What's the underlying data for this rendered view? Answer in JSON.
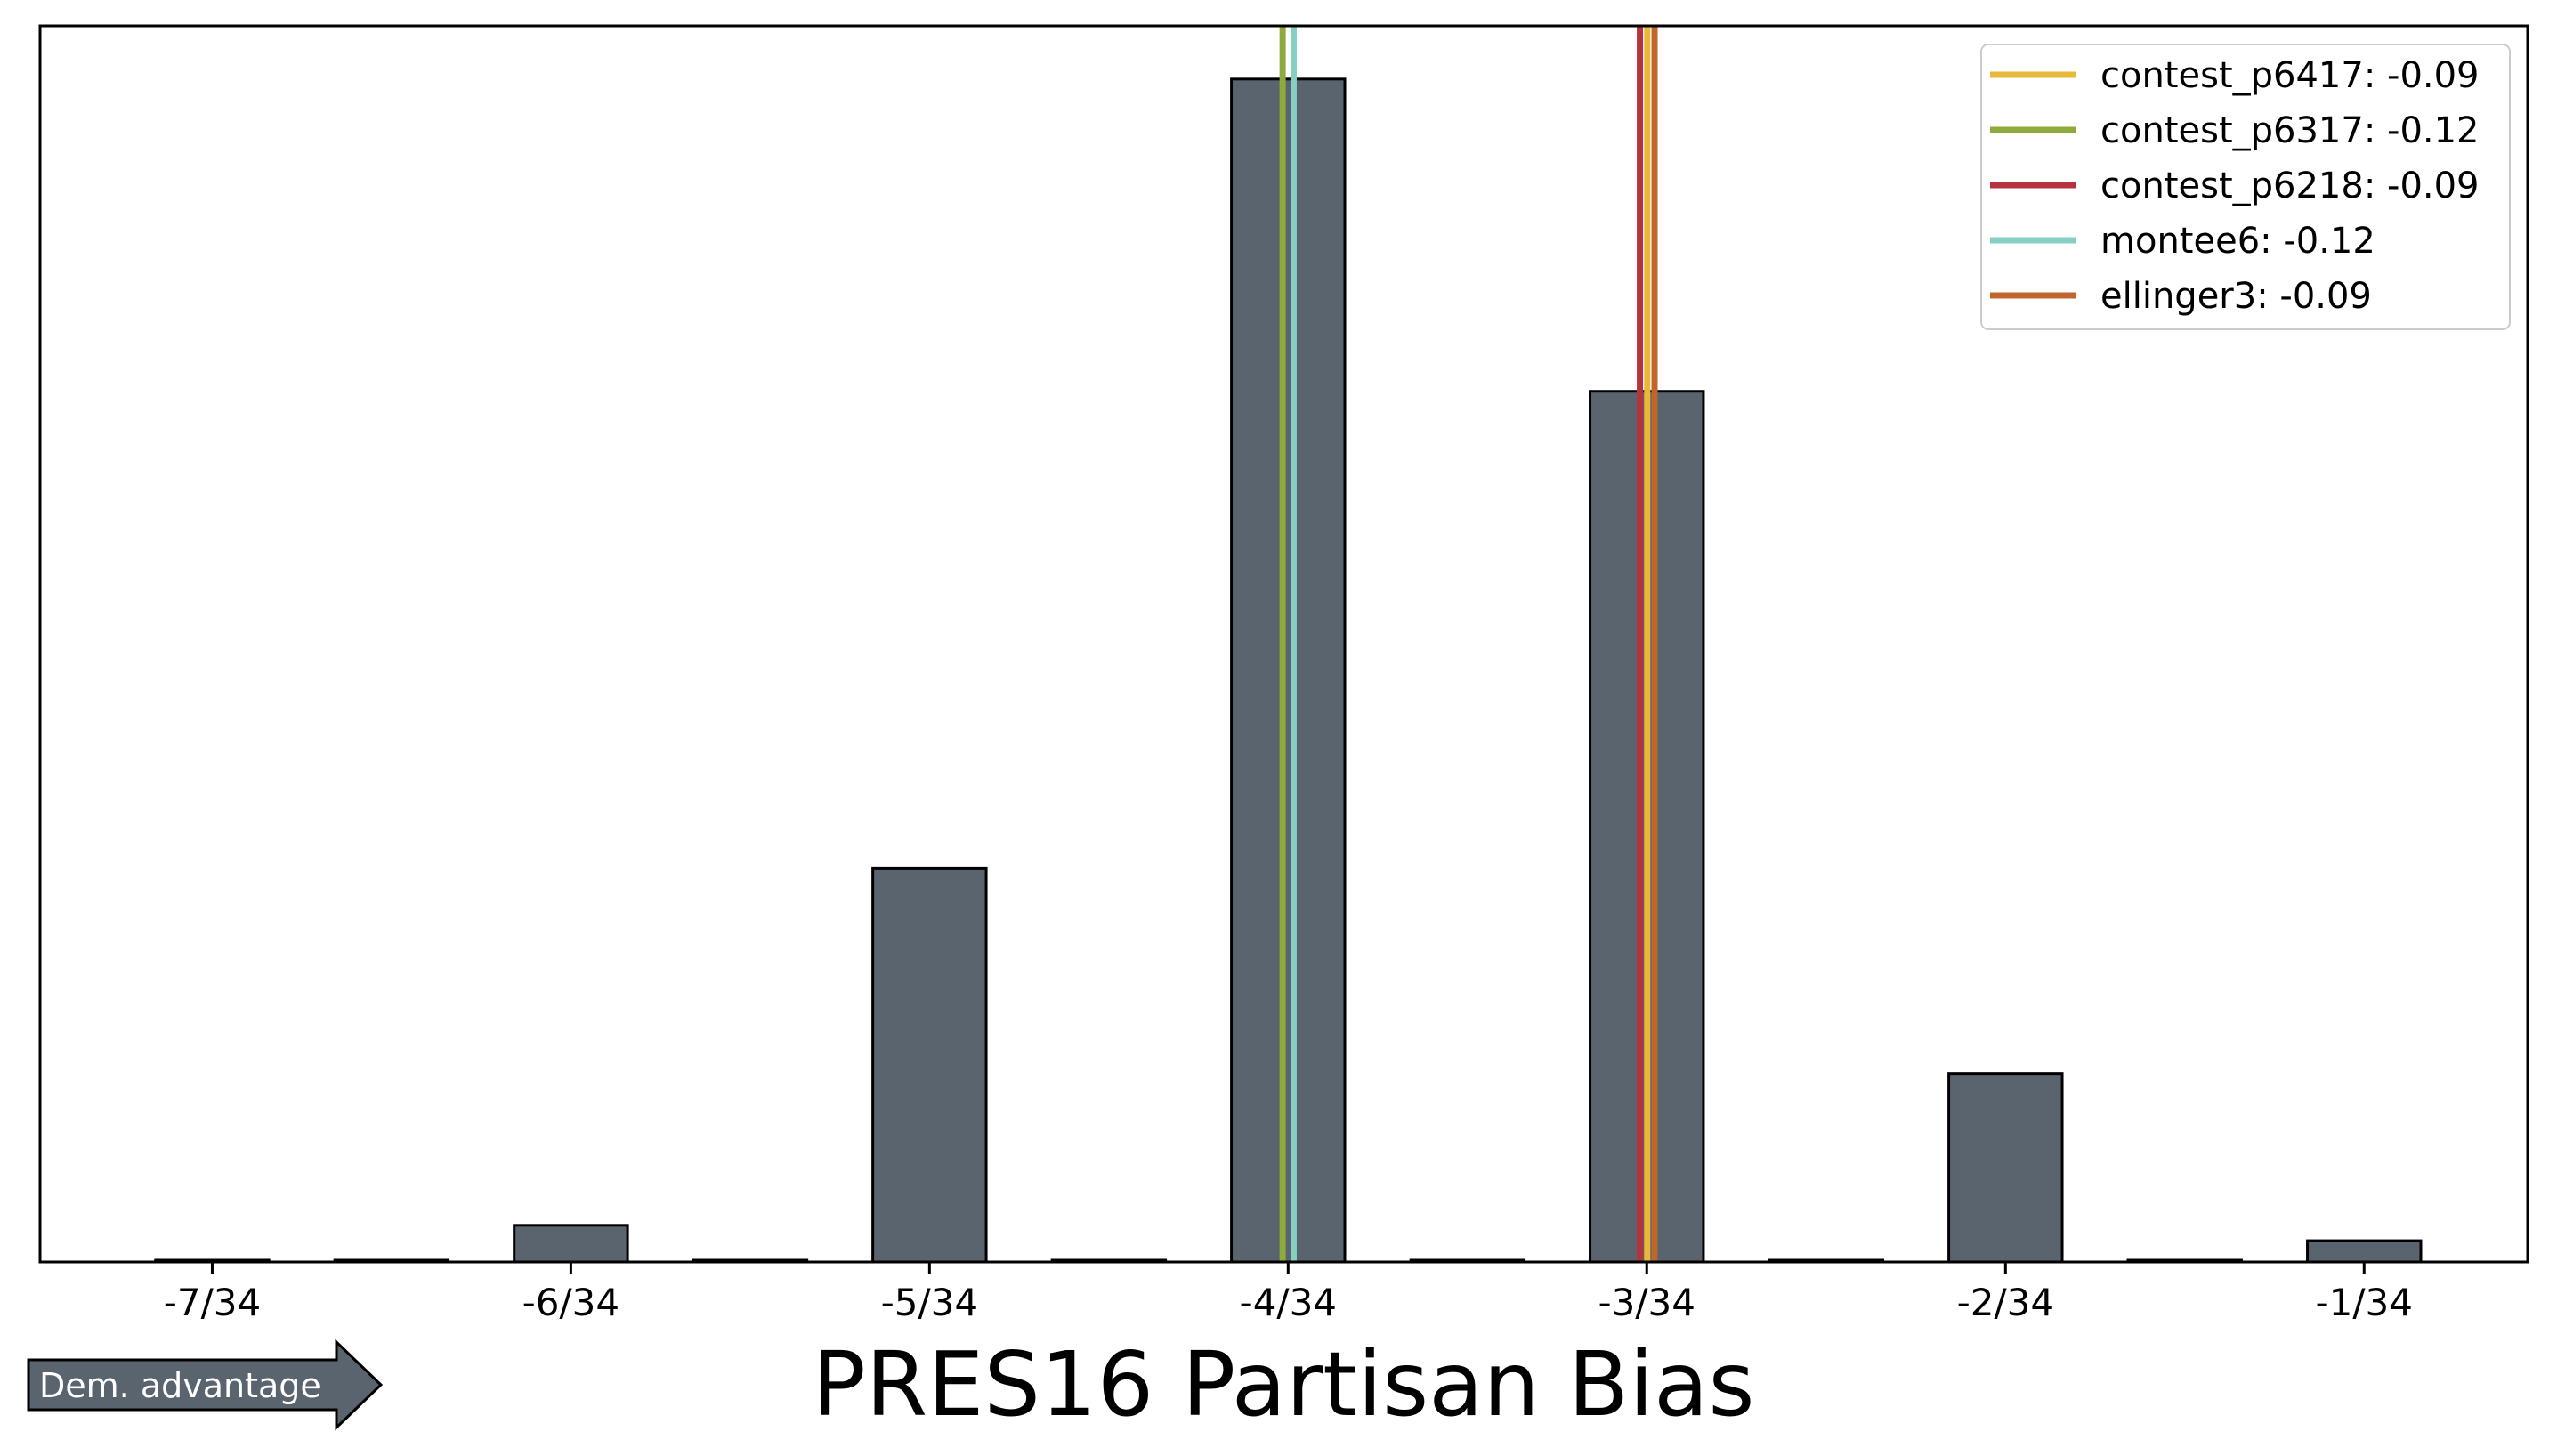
{
  "chart_data": {
    "type": "bar",
    "title": "",
    "xlabel": "PRES16 Partisan Bias",
    "ylabel": "",
    "x_tick_values": [
      -0.20588,
      -0.17647,
      -0.14706,
      -0.11765,
      -0.08824,
      -0.05882,
      -0.02941
    ],
    "x_tick_labels": [
      "-7/34",
      "-6/34",
      "-5/34",
      "-4/34",
      "-3/34",
      "-2/34",
      "-1/34"
    ],
    "xlim": [
      -0.22,
      -0.016
    ],
    "ylim": [
      0,
      1.045
    ],
    "bars": [
      {
        "x": -0.20588,
        "value": 0.0015
      },
      {
        "x": -0.19118,
        "value": 0.0015
      },
      {
        "x": -0.17647,
        "value": 0.031
      },
      {
        "x": -0.16176,
        "value": 0.0015
      },
      {
        "x": -0.14706,
        "value": 0.333
      },
      {
        "x": -0.13235,
        "value": 0.0015
      },
      {
        "x": -0.11765,
        "value": 1.0
      },
      {
        "x": -0.10294,
        "value": 0.0015
      },
      {
        "x": -0.08824,
        "value": 0.736
      },
      {
        "x": -0.07353,
        "value": 0.0015
      },
      {
        "x": -0.05882,
        "value": 0.159
      },
      {
        "x": -0.04412,
        "value": 0.0015
      },
      {
        "x": -0.02941,
        "value": 0.018
      }
    ],
    "bar_width": 0.0093,
    "bar_color": "#5a646e",
    "grid": false,
    "legend_position": "top-right",
    "vlines": [
      {
        "name": "contest_p6417",
        "label": "contest_p6417: -0.09",
        "x": -0.0882,
        "color": "#e8b83a"
      },
      {
        "name": "contest_p6317",
        "label": "contest_p6317: -0.12",
        "x": -0.1181,
        "color": "#8faa3c"
      },
      {
        "name": "contest_p6218",
        "label": "contest_p6218: -0.09",
        "x": -0.0888,
        "color": "#b7323f"
      },
      {
        "name": "montee6",
        "label": "montee6: -0.12",
        "x": -0.1172,
        "color": "#86cfc4"
      },
      {
        "name": "ellinger3",
        "label": "ellinger3: -0.09",
        "x": -0.0876,
        "color": "#c0662c"
      }
    ],
    "annotation": {
      "text": "Dem. advantage",
      "direction": "right"
    }
  }
}
